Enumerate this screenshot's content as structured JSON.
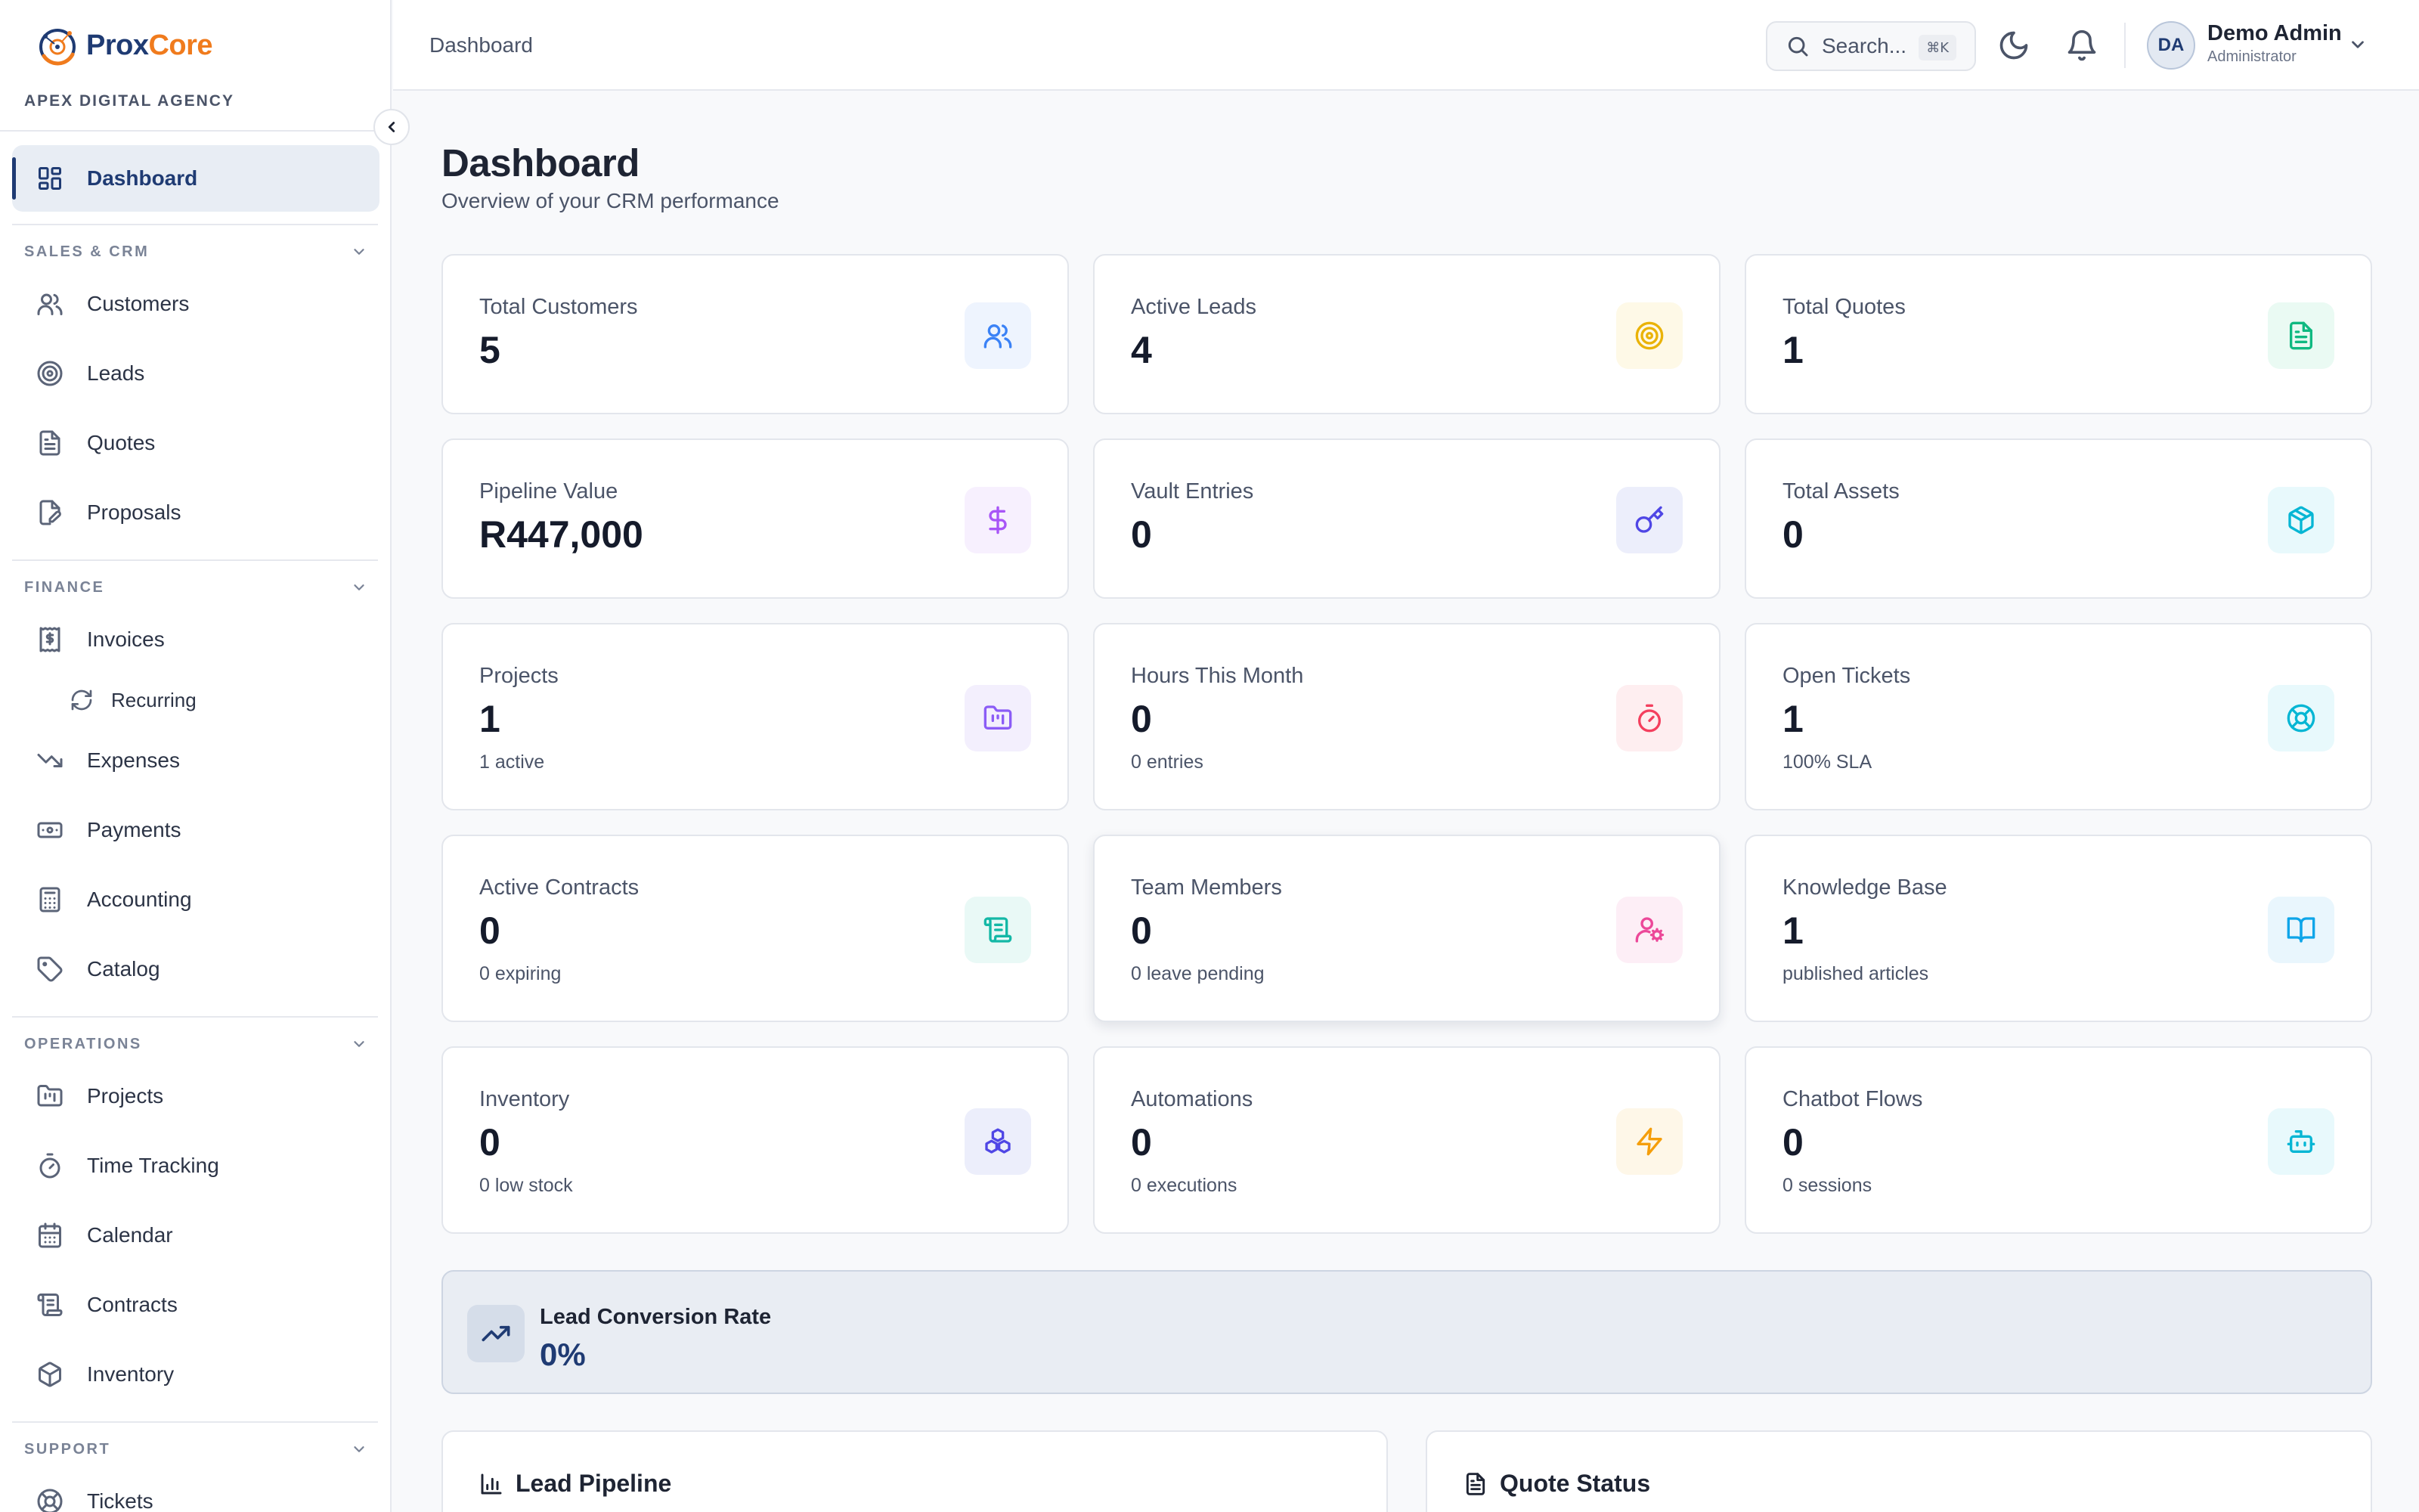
{
  "brand": {
    "name_part1": "Prox",
    "name_part2": "Core",
    "agency": "APEX DIGITAL AGENCY",
    "colors": {
      "navy": "#1f3b73",
      "orange": "#f07b1d"
    }
  },
  "sidebar": {
    "items": [
      {
        "label": "Dashboard",
        "icon": "layout-dashboard-icon",
        "active": true
      },
      {
        "label": "Customers",
        "icon": "users-icon"
      },
      {
        "label": "Leads",
        "icon": "target-icon"
      },
      {
        "label": "Quotes",
        "icon": "file-text-icon"
      },
      {
        "label": "Proposals",
        "icon": "file-pen-icon"
      },
      {
        "label": "Invoices",
        "icon": "receipt-icon"
      },
      {
        "label": "Recurring",
        "icon": "refresh-icon"
      },
      {
        "label": "Expenses",
        "icon": "trending-down-icon"
      },
      {
        "label": "Payments",
        "icon": "banknote-icon"
      },
      {
        "label": "Accounting",
        "icon": "calculator-icon"
      },
      {
        "label": "Catalog",
        "icon": "tag-icon"
      },
      {
        "label": "Projects",
        "icon": "folder-kanban-icon"
      },
      {
        "label": "Time Tracking",
        "icon": "timer-icon"
      },
      {
        "label": "Calendar",
        "icon": "calendar-icon"
      },
      {
        "label": "Contracts",
        "icon": "scroll-icon"
      },
      {
        "label": "Inventory",
        "icon": "box-icon"
      },
      {
        "label": "Tickets",
        "icon": "life-buoy-icon"
      }
    ],
    "sections": [
      {
        "title": "SALES & CRM"
      },
      {
        "title": "FINANCE"
      },
      {
        "title": "OPERATIONS"
      },
      {
        "title": "SUPPORT"
      }
    ]
  },
  "header": {
    "breadcrumb": "Dashboard",
    "search_placeholder": "Search...",
    "search_shortcut": "⌘K",
    "user": {
      "initials": "DA",
      "name": "Demo Admin",
      "role": "Administrator"
    }
  },
  "main": {
    "title": "Dashboard",
    "subtitle": "Overview of your CRM performance",
    "stats": [
      {
        "title": "Total Customers",
        "value": "5",
        "sub": "",
        "icon": "users-icon",
        "color": "#3b82f6",
        "bg": "#eef4fe"
      },
      {
        "title": "Active Leads",
        "value": "4",
        "sub": "",
        "icon": "target-icon",
        "color": "#eab308",
        "bg": "#fef9e7"
      },
      {
        "title": "Total Quotes",
        "value": "1",
        "sub": "",
        "icon": "file-text-icon",
        "color": "#10b981",
        "bg": "#eafaf3"
      },
      {
        "title": "Pipeline Value",
        "value": "R447,000",
        "sub": "",
        "icon": "dollar-icon",
        "color": "#a855f7",
        "bg": "#f7f0fe"
      },
      {
        "title": "Vault Entries",
        "value": "0",
        "sub": "",
        "icon": "key-icon",
        "color": "#4f46e5",
        "bg": "#eceefb"
      },
      {
        "title": "Total Assets",
        "value": "0",
        "sub": "",
        "icon": "package-icon",
        "color": "#06b6d4",
        "bg": "#e8f9fc"
      },
      {
        "title": "Projects",
        "value": "1",
        "sub": "1 active",
        "icon": "folder-kanban-icon",
        "color": "#8b5cf6",
        "bg": "#f3effd"
      },
      {
        "title": "Hours This Month",
        "value": "0",
        "sub": "0 entries",
        "icon": "timer-icon",
        "color": "#f43f5e",
        "bg": "#feeef0"
      },
      {
        "title": "Open Tickets",
        "value": "1",
        "sub": "100% SLA",
        "icon": "life-buoy-icon",
        "color": "#06b6d4",
        "bg": "#e8f9fc"
      },
      {
        "title": "Active Contracts",
        "value": "0",
        "sub": "0 expiring",
        "icon": "scroll-icon",
        "color": "#14b8a6",
        "bg": "#e9f9f6"
      },
      {
        "title": "Team Members",
        "value": "0",
        "sub": "0 leave pending",
        "icon": "user-cog-icon",
        "color": "#ec4899",
        "bg": "#fdeef6"
      },
      {
        "title": "Knowledge Base",
        "value": "1",
        "sub": "published articles",
        "icon": "book-open-icon",
        "color": "#0ea5e9",
        "bg": "#e9f6fd"
      },
      {
        "title": "Inventory",
        "value": "0",
        "sub": "0 low stock",
        "icon": "boxes-icon",
        "color": "#4f46e5",
        "bg": "#eceefb"
      },
      {
        "title": "Automations",
        "value": "0",
        "sub": "0 executions",
        "icon": "zap-icon",
        "color": "#f59e0b",
        "bg": "#fef7e8"
      },
      {
        "title": "Chatbot Flows",
        "value": "0",
        "sub": "0 sessions",
        "icon": "bot-icon",
        "color": "#06b6d4",
        "bg": "#e8f9fc"
      }
    ],
    "conversion": {
      "title": "Lead Conversion Rate",
      "value": "0%",
      "icon": "trending-up-icon"
    },
    "panels": [
      {
        "title": "Lead Pipeline",
        "icon": "bar-chart-icon"
      },
      {
        "title": "Quote Status",
        "icon": "file-text-icon"
      }
    ]
  }
}
